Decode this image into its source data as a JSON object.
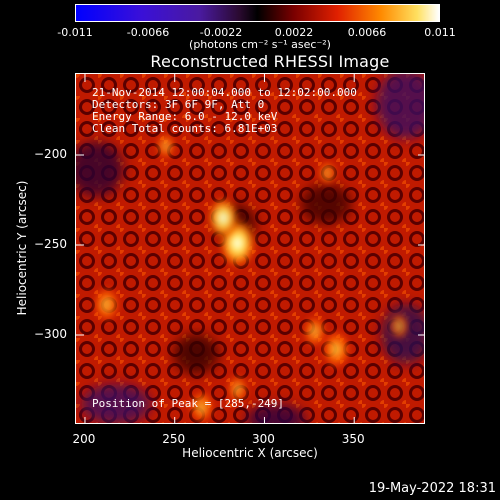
{
  "colorbar": {
    "ticks": [
      "-0.011",
      "-0.0066",
      "-0.0022",
      "0.0022",
      "0.0066",
      "0.011"
    ],
    "unit": "(photons cm⁻² s⁻¹ asec⁻²)"
  },
  "chart_data": {
    "type": "heatmap",
    "title": "Reconstructed RHESSI Image",
    "xlabel": "Heliocentric X (arcsec)",
    "ylabel": "Heliocentric Y (arcsec)",
    "xlim": [
      195,
      390
    ],
    "ylim": [
      -350,
      -155
    ],
    "x_ticks": [
      "200",
      "250",
      "300",
      "350"
    ],
    "y_ticks": [
      "-200",
      "-250",
      "-300"
    ],
    "color_range": [
      -0.011,
      0.011
    ],
    "peak": [
      285,
      -249
    ],
    "sources": [
      {
        "x": 285,
        "y": -249,
        "intensity": 1.0
      },
      {
        "x": 277,
        "y": -235,
        "intensity": 0.75
      },
      {
        "x": 212,
        "y": -283,
        "intensity": 0.55
      },
      {
        "x": 340,
        "y": -308,
        "intensity": 0.65
      },
      {
        "x": 328,
        "y": -298,
        "intensity": 0.45
      },
      {
        "x": 265,
        "y": -340,
        "intensity": 0.5
      },
      {
        "x": 285,
        "y": -330,
        "intensity": 0.35
      },
      {
        "x": 375,
        "y": -295,
        "intensity": 0.3
      },
      {
        "x": 245,
        "y": -195,
        "intensity": 0.3
      },
      {
        "x": 335,
        "y": -210,
        "intensity": 0.25
      }
    ],
    "annotations": [
      "21-Nov-2014 12:00:04.000 to 12:02:00.000",
      "Detectors: 3F 6F 9F, Att 0",
      "Energy Range: 6.0 - 12.0 keV",
      "Clean    Total counts: 6.81E+03"
    ],
    "peak_label": "Position of Peak = [285,-249]"
  },
  "footer": {
    "date": "19-May-2022 18:31"
  }
}
